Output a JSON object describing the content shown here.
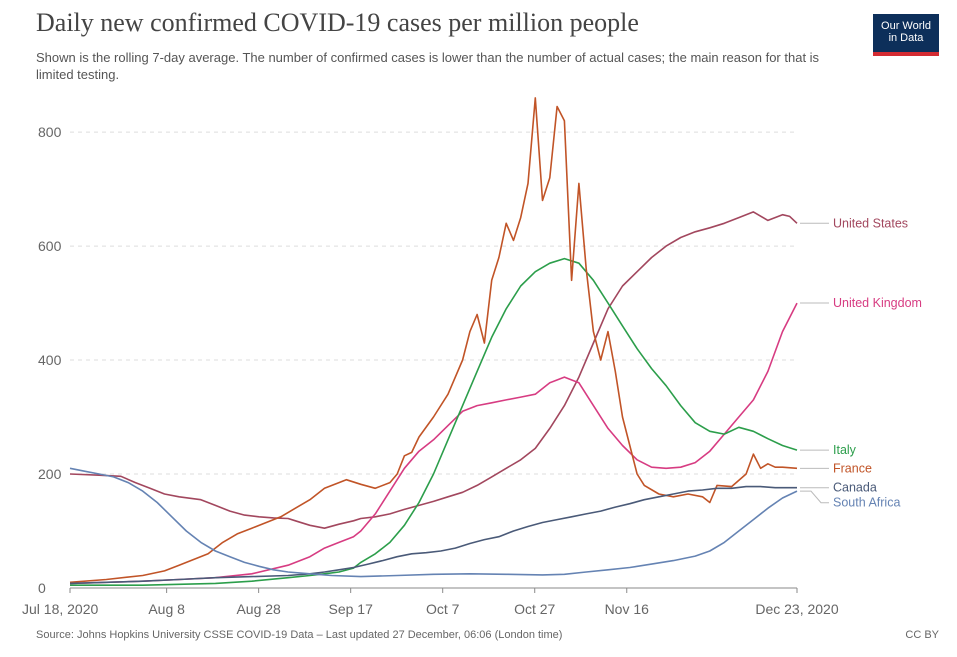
{
  "header": {
    "title": "Daily new confirmed COVID-19 cases per million people",
    "subtitle": "Shown is the rolling 7-day average. The number of confirmed cases is lower than the number of actual cases; the main reason for that is limited testing.",
    "logo_line1": "Our World",
    "logo_line2": "in Data"
  },
  "footer": {
    "source": "Source: Johns Hopkins University CSSE COVID-19 Data – Last updated 27 December, 06:06 (London time)",
    "license": "CC BY"
  },
  "chart_data": {
    "type": "line",
    "title": "Daily new confirmed COVID-19 cases per million people",
    "subtitle": "Shown is the rolling 7-day average. The number of confirmed cases is lower than the number of actual cases; the main reason for that is limited testing.",
    "xlabel": "",
    "ylabel": "",
    "x_ticks": [
      "Jul 18, 2020",
      "Aug 8",
      "Aug 28",
      "Sep 17",
      "Oct 7",
      "Oct 27",
      "Nov 16",
      "Dec 23, 2020"
    ],
    "x_tick_days": [
      0,
      21,
      41,
      61,
      81,
      101,
      121,
      158
    ],
    "y_ticks": [
      0,
      200,
      400,
      600,
      800
    ],
    "ylim": [
      0,
      830
    ],
    "xlim_days": [
      0,
      158
    ],
    "x_date_range": [
      "2020-07-18",
      "2020-12-23"
    ],
    "grid": "horizontal dashed",
    "series": [
      {
        "name": "United States",
        "color": "#a2475e",
        "points": [
          [
            0,
            200
          ],
          [
            8,
            198
          ],
          [
            14,
            196
          ],
          [
            18,
            185
          ],
          [
            22,
            175
          ],
          [
            26,
            165
          ],
          [
            30,
            160
          ],
          [
            36,
            155
          ],
          [
            40,
            145
          ],
          [
            44,
            135
          ],
          [
            48,
            128
          ],
          [
            52,
            125
          ],
          [
            56,
            123
          ],
          [
            60,
            122
          ],
          [
            62,
            118
          ],
          [
            66,
            110
          ],
          [
            70,
            105
          ],
          [
            74,
            112
          ],
          [
            78,
            118
          ],
          [
            80,
            122
          ],
          [
            84,
            125
          ],
          [
            88,
            130
          ],
          [
            92,
            138
          ],
          [
            96,
            145
          ],
          [
            100,
            152
          ],
          [
            104,
            160
          ],
          [
            108,
            168
          ],
          [
            112,
            180
          ],
          [
            116,
            195
          ],
          [
            120,
            210
          ],
          [
            124,
            225
          ],
          [
            128,
            245
          ],
          [
            132,
            280
          ],
          [
            136,
            320
          ],
          [
            140,
            370
          ],
          [
            144,
            430
          ],
          [
            148,
            490
          ],
          [
            152,
            530
          ],
          [
            156,
            555
          ],
          [
            160,
            580
          ],
          [
            164,
            600
          ],
          [
            168,
            615
          ],
          [
            172,
            625
          ],
          [
            176,
            632
          ],
          [
            180,
            640
          ],
          [
            184,
            650
          ],
          [
            188,
            660
          ],
          [
            192,
            645
          ],
          [
            196,
            655
          ],
          [
            198,
            652
          ],
          [
            200,
            640
          ]
        ]
      },
      {
        "name": "United Kingdom",
        "color": "#d73c82",
        "points": [
          [
            0,
            8
          ],
          [
            10,
            10
          ],
          [
            20,
            12
          ],
          [
            30,
            15
          ],
          [
            40,
            18
          ],
          [
            50,
            25
          ],
          [
            60,
            40
          ],
          [
            66,
            55
          ],
          [
            70,
            70
          ],
          [
            74,
            80
          ],
          [
            78,
            90
          ],
          [
            80,
            100
          ],
          [
            84,
            130
          ],
          [
            88,
            170
          ],
          [
            92,
            210
          ],
          [
            96,
            240
          ],
          [
            100,
            260
          ],
          [
            104,
            285
          ],
          [
            108,
            310
          ],
          [
            112,
            320
          ],
          [
            116,
            325
          ],
          [
            120,
            330
          ],
          [
            124,
            335
          ],
          [
            128,
            340
          ],
          [
            132,
            360
          ],
          [
            136,
            370
          ],
          [
            140,
            360
          ],
          [
            144,
            320
          ],
          [
            148,
            280
          ],
          [
            152,
            250
          ],
          [
            156,
            225
          ],
          [
            160,
            212
          ],
          [
            164,
            210
          ],
          [
            168,
            212
          ],
          [
            172,
            220
          ],
          [
            176,
            240
          ],
          [
            180,
            270
          ],
          [
            184,
            300
          ],
          [
            188,
            330
          ],
          [
            192,
            380
          ],
          [
            196,
            450
          ],
          [
            200,
            500
          ]
        ]
      },
      {
        "name": "Italy",
        "color": "#2c9e4b",
        "points": [
          [
            0,
            5
          ],
          [
            20,
            5
          ],
          [
            40,
            8
          ],
          [
            50,
            12
          ],
          [
            60,
            18
          ],
          [
            66,
            22
          ],
          [
            70,
            25
          ],
          [
            74,
            28
          ],
          [
            78,
            35
          ],
          [
            80,
            45
          ],
          [
            84,
            60
          ],
          [
            88,
            80
          ],
          [
            92,
            110
          ],
          [
            96,
            150
          ],
          [
            100,
            200
          ],
          [
            104,
            260
          ],
          [
            108,
            320
          ],
          [
            112,
            380
          ],
          [
            116,
            440
          ],
          [
            120,
            490
          ],
          [
            124,
            530
          ],
          [
            128,
            555
          ],
          [
            132,
            570
          ],
          [
            136,
            578
          ],
          [
            140,
            570
          ],
          [
            144,
            540
          ],
          [
            148,
            500
          ],
          [
            152,
            460
          ],
          [
            156,
            420
          ],
          [
            160,
            385
          ],
          [
            164,
            355
          ],
          [
            168,
            320
          ],
          [
            172,
            290
          ],
          [
            176,
            275
          ],
          [
            180,
            270
          ],
          [
            184,
            282
          ],
          [
            188,
            275
          ],
          [
            192,
            262
          ],
          [
            196,
            250
          ],
          [
            200,
            242
          ]
        ]
      },
      {
        "name": "France",
        "color": "#c15427",
        "points": [
          [
            0,
            10
          ],
          [
            10,
            15
          ],
          [
            20,
            22
          ],
          [
            26,
            30
          ],
          [
            30,
            40
          ],
          [
            34,
            50
          ],
          [
            38,
            60
          ],
          [
            42,
            80
          ],
          [
            46,
            95
          ],
          [
            50,
            105
          ],
          [
            54,
            115
          ],
          [
            58,
            125
          ],
          [
            62,
            140
          ],
          [
            66,
            155
          ],
          [
            70,
            175
          ],
          [
            74,
            185
          ],
          [
            76,
            190
          ],
          [
            80,
            182
          ],
          [
            84,
            175
          ],
          [
            88,
            185
          ],
          [
            90,
            200
          ],
          [
            92,
            232
          ],
          [
            94,
            238
          ],
          [
            96,
            265
          ],
          [
            100,
            300
          ],
          [
            104,
            340
          ],
          [
            108,
            400
          ],
          [
            110,
            450
          ],
          [
            112,
            480
          ],
          [
            114,
            430
          ],
          [
            116,
            540
          ],
          [
            118,
            580
          ],
          [
            120,
            640
          ],
          [
            122,
            610
          ],
          [
            124,
            650
          ],
          [
            126,
            710
          ],
          [
            128,
            860
          ],
          [
            130,
            680
          ],
          [
            132,
            720
          ],
          [
            134,
            845
          ],
          [
            136,
            820
          ],
          [
            138,
            540
          ],
          [
            140,
            710
          ],
          [
            142,
            560
          ],
          [
            144,
            450
          ],
          [
            146,
            400
          ],
          [
            148,
            450
          ],
          [
            150,
            380
          ],
          [
            152,
            300
          ],
          [
            154,
            250
          ],
          [
            156,
            200
          ],
          [
            158,
            180
          ],
          [
            162,
            165
          ],
          [
            166,
            160
          ],
          [
            170,
            165
          ],
          [
            174,
            160
          ],
          [
            176,
            150
          ],
          [
            178,
            180
          ],
          [
            182,
            178
          ],
          [
            186,
            200
          ],
          [
            188,
            235
          ],
          [
            190,
            210
          ],
          [
            192,
            218
          ],
          [
            194,
            212
          ],
          [
            196,
            212
          ],
          [
            200,
            210
          ]
        ]
      },
      {
        "name": "Canada",
        "color": "#4a5a78",
        "points": [
          [
            0,
            8
          ],
          [
            10,
            10
          ],
          [
            20,
            12
          ],
          [
            30,
            15
          ],
          [
            40,
            18
          ],
          [
            50,
            20
          ],
          [
            60,
            22
          ],
          [
            66,
            25
          ],
          [
            70,
            28
          ],
          [
            74,
            32
          ],
          [
            78,
            36
          ],
          [
            82,
            42
          ],
          [
            86,
            48
          ],
          [
            90,
            55
          ],
          [
            94,
            60
          ],
          [
            98,
            62
          ],
          [
            102,
            65
          ],
          [
            106,
            70
          ],
          [
            110,
            78
          ],
          [
            114,
            85
          ],
          [
            118,
            90
          ],
          [
            122,
            100
          ],
          [
            126,
            108
          ],
          [
            130,
            115
          ],
          [
            134,
            120
          ],
          [
            138,
            125
          ],
          [
            142,
            130
          ],
          [
            146,
            135
          ],
          [
            150,
            142
          ],
          [
            154,
            148
          ],
          [
            158,
            155
          ],
          [
            162,
            160
          ],
          [
            166,
            165
          ],
          [
            170,
            170
          ],
          [
            174,
            172
          ],
          [
            178,
            175
          ],
          [
            182,
            175
          ],
          [
            186,
            178
          ],
          [
            190,
            178
          ],
          [
            194,
            176
          ],
          [
            196,
            176
          ],
          [
            200,
            176
          ]
        ]
      },
      {
        "name": "South Africa",
        "color": "#6583b3",
        "points": [
          [
            0,
            210
          ],
          [
            4,
            205
          ],
          [
            8,
            200
          ],
          [
            12,
            195
          ],
          [
            16,
            185
          ],
          [
            20,
            170
          ],
          [
            24,
            150
          ],
          [
            28,
            125
          ],
          [
            32,
            100
          ],
          [
            36,
            80
          ],
          [
            40,
            65
          ],
          [
            44,
            55
          ],
          [
            48,
            45
          ],
          [
            52,
            38
          ],
          [
            56,
            32
          ],
          [
            60,
            28
          ],
          [
            66,
            25
          ],
          [
            72,
            22
          ],
          [
            80,
            20
          ],
          [
            90,
            22
          ],
          [
            100,
            24
          ],
          [
            110,
            25
          ],
          [
            120,
            24
          ],
          [
            130,
            23
          ],
          [
            136,
            24
          ],
          [
            142,
            28
          ],
          [
            148,
            32
          ],
          [
            154,
            36
          ],
          [
            160,
            42
          ],
          [
            166,
            48
          ],
          [
            172,
            56
          ],
          [
            176,
            65
          ],
          [
            180,
            80
          ],
          [
            184,
            100
          ],
          [
            188,
            120
          ],
          [
            192,
            140
          ],
          [
            196,
            158
          ],
          [
            200,
            170
          ]
        ]
      }
    ]
  }
}
